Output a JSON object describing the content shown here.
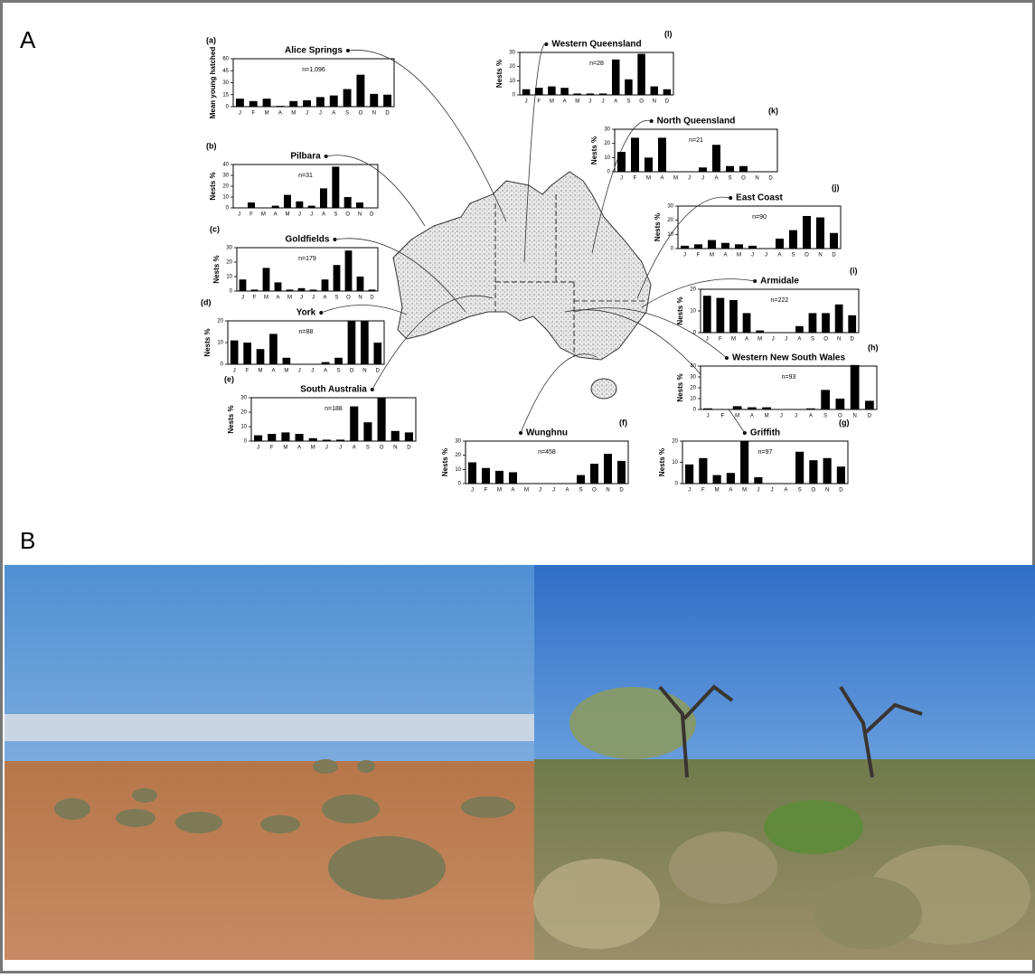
{
  "panel_labels": [
    "A",
    "B"
  ],
  "chart_data": [
    {
      "type": "bar",
      "letter": "(a)",
      "title": "Alice Springs",
      "n_label": "n=1,096",
      "y_label": "Mean young hatched",
      "categories": [
        "J",
        "F",
        "M",
        "A",
        "M",
        "J",
        "J",
        "A",
        "S",
        "O",
        "N",
        "D"
      ],
      "values": [
        10,
        7,
        10,
        1,
        7,
        8,
        12,
        14,
        22,
        40,
        16,
        15
      ],
      "ylim": [
        0,
        60
      ],
      "yticks": [
        0,
        15,
        30,
        45,
        60
      ],
      "color": "#000000"
    },
    {
      "type": "bar",
      "letter": "(b)",
      "title": "Pilbara",
      "n_label": "n=31",
      "y_label": "Nests %",
      "categories": [
        "J",
        "F",
        "M",
        "A",
        "M",
        "J",
        "J",
        "A",
        "S",
        "O",
        "N",
        "D"
      ],
      "values": [
        0,
        5,
        0,
        2,
        12,
        6,
        2,
        18,
        38,
        10,
        5,
        0
      ],
      "ylim": [
        0,
        40
      ],
      "yticks": [
        0,
        10,
        20,
        30,
        40
      ],
      "color": "#000000"
    },
    {
      "type": "bar",
      "letter": "(c)",
      "title": "Goldfields",
      "n_label": "n=179",
      "y_label": "Nests %",
      "categories": [
        "J",
        "F",
        "M",
        "A",
        "M",
        "J",
        "J",
        "A",
        "S",
        "O",
        "N",
        "D"
      ],
      "values": [
        8,
        1,
        16,
        6,
        1,
        2,
        1,
        8,
        18,
        28,
        10,
        1
      ],
      "ylim": [
        0,
        30
      ],
      "yticks": [
        0,
        10,
        20,
        30
      ],
      "color": "#000000"
    },
    {
      "type": "bar",
      "letter": "(d)",
      "title": "York",
      "n_label": "n=88",
      "y_label": "Nests %",
      "categories": [
        "J",
        "F",
        "M",
        "A",
        "M",
        "J",
        "J",
        "A",
        "S",
        "O",
        "N",
        "D"
      ],
      "values": [
        11,
        10,
        7,
        14,
        3,
        0,
        0,
        1,
        3,
        20,
        20,
        10
      ],
      "ylim": [
        0,
        20
      ],
      "yticks": [
        0,
        10,
        20
      ],
      "color": "#000000"
    },
    {
      "type": "bar",
      "letter": "(e)",
      "title": "South Australia",
      "n_label": "n=188",
      "y_label": "Nests %",
      "categories": [
        "J",
        "F",
        "M",
        "A",
        "M",
        "J",
        "J",
        "A",
        "S",
        "O",
        "N",
        "D"
      ],
      "values": [
        4,
        5,
        6,
        5,
        2,
        1,
        1,
        24,
        13,
        30,
        7,
        6
      ],
      "ylim": [
        0,
        30
      ],
      "yticks": [
        0,
        10,
        20,
        30
      ],
      "color": "#000000"
    },
    {
      "type": "bar",
      "letter": "(f)",
      "title": "Wunghnu",
      "n_label": "n=458",
      "y_label": "Nests %",
      "categories": [
        "J",
        "F",
        "M",
        "A",
        "M",
        "J",
        "J",
        "A",
        "S",
        "O",
        "N",
        "D"
      ],
      "values": [
        15,
        11,
        9,
        8,
        0,
        0,
        0,
        0,
        6,
        14,
        21,
        16
      ],
      "ylim": [
        0,
        30
      ],
      "yticks": [
        0,
        10,
        20,
        30
      ],
      "color": "#000000"
    },
    {
      "type": "bar",
      "letter": "(g)",
      "title": "Griffith",
      "n_label": "n=97",
      "y_label": "Nests %",
      "categories": [
        "J",
        "F",
        "M",
        "A",
        "M",
        "J",
        "J",
        "A",
        "S",
        "O",
        "N",
        "D"
      ],
      "values": [
        9,
        12,
        4,
        5,
        20,
        3,
        0,
        0,
        15,
        11,
        12,
        8
      ],
      "ylim": [
        0,
        20
      ],
      "yticks": [
        0,
        10,
        20
      ],
      "color": "#000000"
    },
    {
      "type": "bar",
      "letter": "(h)",
      "title": "Western New South Wales",
      "n_label": "n=93",
      "y_label": "Nests %",
      "categories": [
        "J",
        "F",
        "M",
        "A",
        "M",
        "J",
        "J",
        "A",
        "S",
        "O",
        "N",
        "D"
      ],
      "values": [
        1,
        0,
        3,
        2,
        2,
        0,
        0,
        1,
        18,
        10,
        41,
        8
      ],
      "ylim": [
        0,
        40
      ],
      "yticks": [
        0,
        10,
        20,
        30,
        40
      ],
      "color": "#000000"
    },
    {
      "type": "bar",
      "letter": "(i)",
      "title": "Armidale",
      "n_label": "n=222",
      "y_label": "Nests %",
      "categories": [
        "J",
        "F",
        "M",
        "A",
        "M",
        "J",
        "J",
        "A",
        "S",
        "O",
        "N",
        "D"
      ],
      "values": [
        17,
        16,
        15,
        9,
        1,
        0,
        0,
        3,
        9,
        9,
        13,
        8
      ],
      "ylim": [
        0,
        20
      ],
      "yticks": [
        0,
        10,
        20
      ],
      "color": "#000000"
    },
    {
      "type": "bar",
      "letter": "(j)",
      "title": "East Coast",
      "n_label": "n=90",
      "y_label": "Nests %",
      "categories": [
        "J",
        "F",
        "M",
        "A",
        "M",
        "J",
        "J",
        "A",
        "S",
        "O",
        "N",
        "D"
      ],
      "values": [
        2,
        3,
        6,
        4,
        3,
        2,
        0,
        7,
        13,
        23,
        22,
        11
      ],
      "ylim": [
        0,
        30
      ],
      "yticks": [
        0,
        10,
        20,
        30
      ],
      "color": "#000000"
    },
    {
      "type": "bar",
      "letter": "(k)",
      "title": "North Queensland",
      "n_label": "n=21",
      "y_label": "Nests %",
      "categories": [
        "J",
        "F",
        "M",
        "A",
        "M",
        "J",
        "J",
        "A",
        "S",
        "O",
        "N",
        "D"
      ],
      "values": [
        14,
        24,
        10,
        24,
        0,
        0,
        3,
        19,
        4,
        4,
        0,
        0
      ],
      "ylim": [
        0,
        30
      ],
      "yticks": [
        0,
        10,
        20,
        30
      ],
      "color": "#000000"
    },
    {
      "type": "bar",
      "letter": "(l)",
      "title": "Western Queensland",
      "n_label": "n=28",
      "y_label": "Nests %",
      "categories": [
        "J",
        "F",
        "M",
        "A",
        "M",
        "J",
        "J",
        "A",
        "S",
        "O",
        "N",
        "D"
      ],
      "values": [
        4,
        5,
        6,
        5,
        1,
        1,
        1,
        25,
        11,
        29,
        6,
        4
      ],
      "ylim": [
        0,
        30
      ],
      "yticks": [
        0,
        10,
        20,
        30
      ],
      "color": "#000000"
    }
  ]
}
